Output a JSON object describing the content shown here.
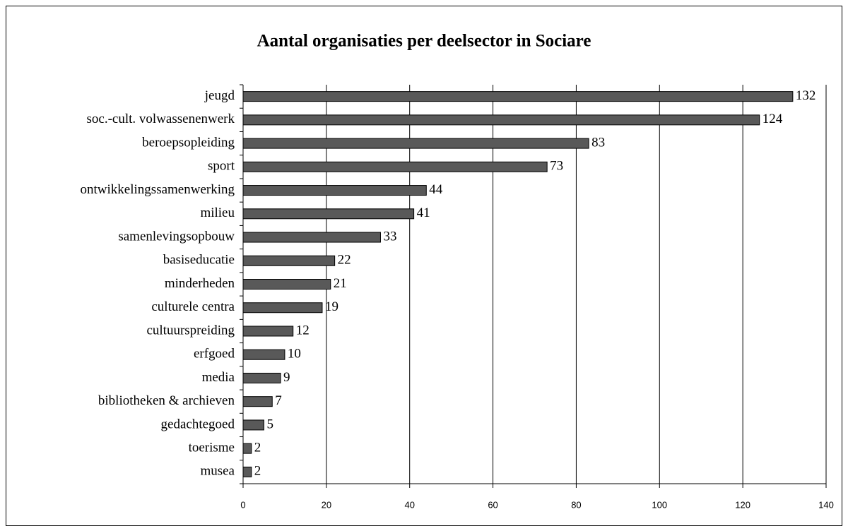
{
  "chart_data": {
    "type": "bar",
    "orientation": "horizontal",
    "title": "Aantal organisaties per deelsector in Sociare",
    "categories": [
      "jeugd",
      "soc.-cult. volwassenenwerk",
      "beroepsopleiding",
      "sport",
      "ontwikkelingssamenwerking",
      "milieu",
      "samenlevingsopbouw",
      "basiseducatie",
      "minderheden",
      "culturele centra",
      "cultuurspreiding",
      "erfgoed",
      "media",
      "bibliotheken & archieven",
      "gedachtegoed",
      "toerisme",
      "musea"
    ],
    "values": [
      132,
      124,
      83,
      73,
      44,
      41,
      33,
      22,
      21,
      19,
      12,
      10,
      9,
      7,
      5,
      2,
      2
    ],
    "color": "#595959",
    "xlim": [
      0,
      140
    ],
    "xticks": [
      0,
      20,
      40,
      60,
      80,
      100,
      120,
      140
    ],
    "grid": true
  }
}
